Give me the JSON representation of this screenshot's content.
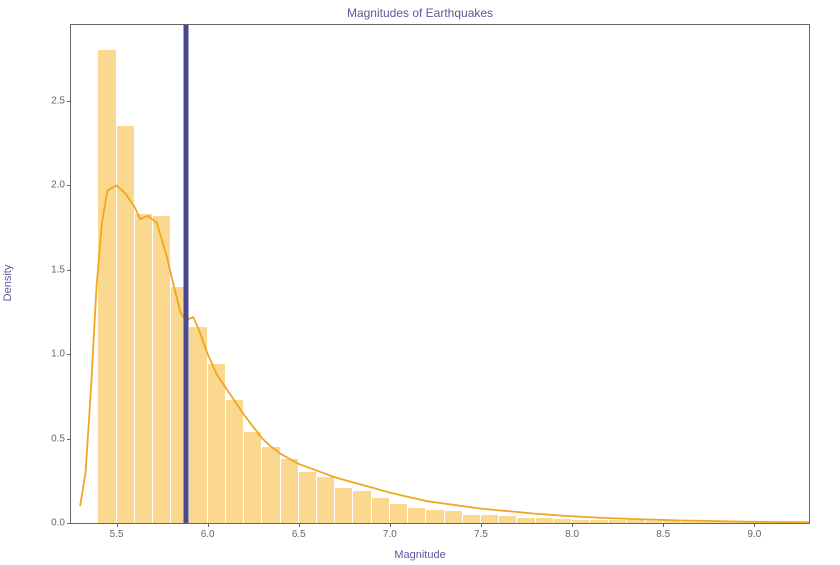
{
  "chart": {
    "type": "histogram",
    "title": "Magnitudes of Earthquakes",
    "title_color": "#5a5a9a",
    "title_fontsize": 12,
    "xlabel": "Magnitude",
    "ylabel": "Density",
    "label_color": "#5a5a9a",
    "label_fontsize": 11,
    "background_color": "#ffffff",
    "border_color": "#666666",
    "tick_fontsize": 10,
    "tick_color": "#666666",
    "xlim": [
      5.25,
      9.3
    ],
    "ylim": [
      0.0,
      2.95
    ],
    "xticks": [
      5.5,
      6.0,
      6.5,
      7.0,
      7.5,
      8.0,
      8.5,
      9.0
    ],
    "yticks": [
      0.0,
      0.5,
      1.0,
      1.5,
      2.0,
      2.5
    ],
    "xtick_labels": [
      "5.5",
      "6.0",
      "6.5",
      "7.0",
      "7.5",
      "8.0",
      "8.5",
      "9.0"
    ],
    "ytick_labels": [
      "0.0",
      "0.5",
      "1.0",
      "1.5",
      "2.0",
      "2.5"
    ],
    "bar_color": "#fad88f",
    "bar_alpha": 1.0,
    "bar_border_color": "#f7b733",
    "bar_border_width": 0,
    "bin_width": 0.1,
    "bins_start": 5.4,
    "bar_values": [
      2.8,
      2.35,
      1.83,
      1.82,
      1.4,
      1.16,
      0.94,
      0.73,
      0.54,
      0.45,
      0.38,
      0.3,
      0.27,
      0.21,
      0.19,
      0.15,
      0.11,
      0.09,
      0.08,
      0.07,
      0.05,
      0.05,
      0.04,
      0.03,
      0.03,
      0.025,
      0.02,
      0.02,
      0.015,
      0.015,
      0.01,
      0.01,
      0.008,
      0.008,
      0.006,
      0.005,
      0.005,
      0.004,
      0.003
    ],
    "kde_color": "#f0a621",
    "kde_linewidth": 1.8,
    "kde_points": [
      [
        5.3,
        0.1
      ],
      [
        5.33,
        0.3
      ],
      [
        5.36,
        0.8
      ],
      [
        5.39,
        1.4
      ],
      [
        5.42,
        1.78
      ],
      [
        5.45,
        1.97
      ],
      [
        5.5,
        2.0
      ],
      [
        5.55,
        1.95
      ],
      [
        5.6,
        1.87
      ],
      [
        5.63,
        1.8
      ],
      [
        5.67,
        1.82
      ],
      [
        5.72,
        1.78
      ],
      [
        5.77,
        1.6
      ],
      [
        5.82,
        1.38
      ],
      [
        5.85,
        1.25
      ],
      [
        5.88,
        1.2
      ],
      [
        5.92,
        1.22
      ],
      [
        5.95,
        1.15
      ],
      [
        6.0,
        1.0
      ],
      [
        6.05,
        0.88
      ],
      [
        6.1,
        0.8
      ],
      [
        6.15,
        0.72
      ],
      [
        6.2,
        0.64
      ],
      [
        6.25,
        0.57
      ],
      [
        6.3,
        0.5
      ],
      [
        6.35,
        0.45
      ],
      [
        6.4,
        0.41
      ],
      [
        6.45,
        0.38
      ],
      [
        6.5,
        0.35
      ],
      [
        6.6,
        0.31
      ],
      [
        6.7,
        0.27
      ],
      [
        6.8,
        0.24
      ],
      [
        6.9,
        0.21
      ],
      [
        7.0,
        0.18
      ],
      [
        7.1,
        0.155
      ],
      [
        7.2,
        0.13
      ],
      [
        7.3,
        0.115
      ],
      [
        7.4,
        0.1
      ],
      [
        7.5,
        0.085
      ],
      [
        7.6,
        0.075
      ],
      [
        7.7,
        0.065
      ],
      [
        7.8,
        0.055
      ],
      [
        7.9,
        0.047
      ],
      [
        8.0,
        0.04
      ],
      [
        8.1,
        0.034
      ],
      [
        8.2,
        0.029
      ],
      [
        8.3,
        0.025
      ],
      [
        8.4,
        0.021
      ],
      [
        8.5,
        0.018
      ],
      [
        8.6,
        0.015
      ],
      [
        8.7,
        0.013
      ],
      [
        8.8,
        0.011
      ],
      [
        8.9,
        0.009
      ],
      [
        9.0,
        0.007
      ],
      [
        9.1,
        0.006
      ],
      [
        9.2,
        0.005
      ],
      [
        9.3,
        0.004
      ]
    ],
    "vline_x": 5.88,
    "vline_color": "#4a4a8a",
    "vline_width": 5
  }
}
